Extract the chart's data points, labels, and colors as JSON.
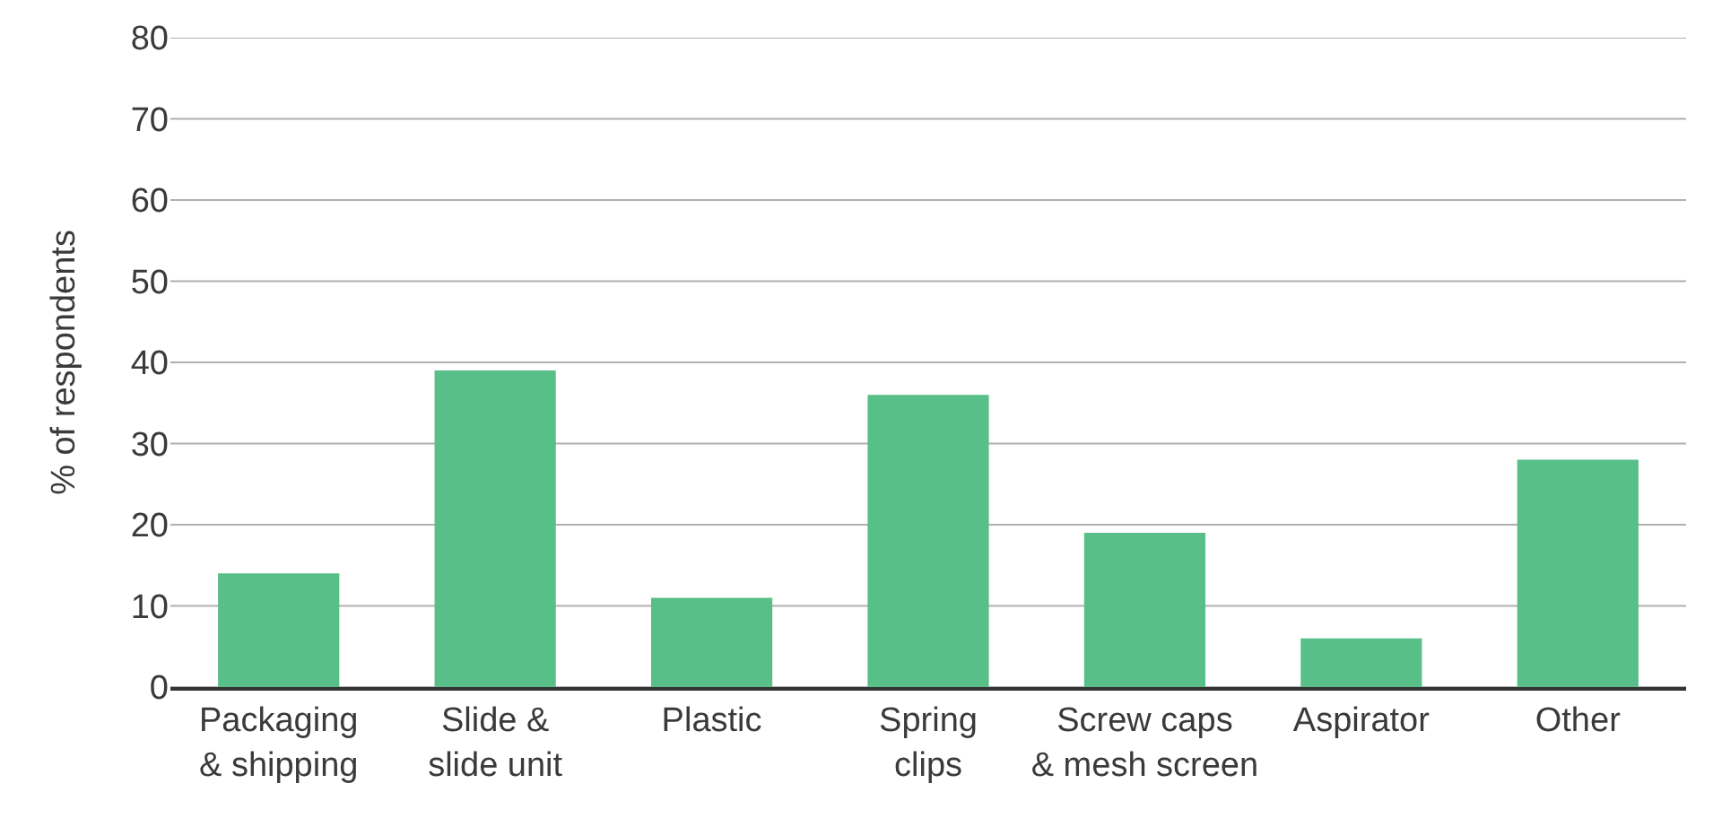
{
  "chart_data": {
    "type": "bar",
    "ylabel": "% of respondents",
    "categories": [
      "Packaging\n& shipping",
      "Slide &\nslide unit",
      "Plastic",
      "Spring\nclips",
      "Screw caps\n& mesh screen",
      "Aspirator",
      "Other"
    ],
    "values": [
      14,
      39,
      11,
      36,
      19,
      6,
      28
    ],
    "color": "#57bf87",
    "ylim": [
      0,
      80
    ],
    "yticks": [
      0,
      10,
      20,
      30,
      40,
      50,
      60,
      70,
      80
    ],
    "grid": "y"
  }
}
